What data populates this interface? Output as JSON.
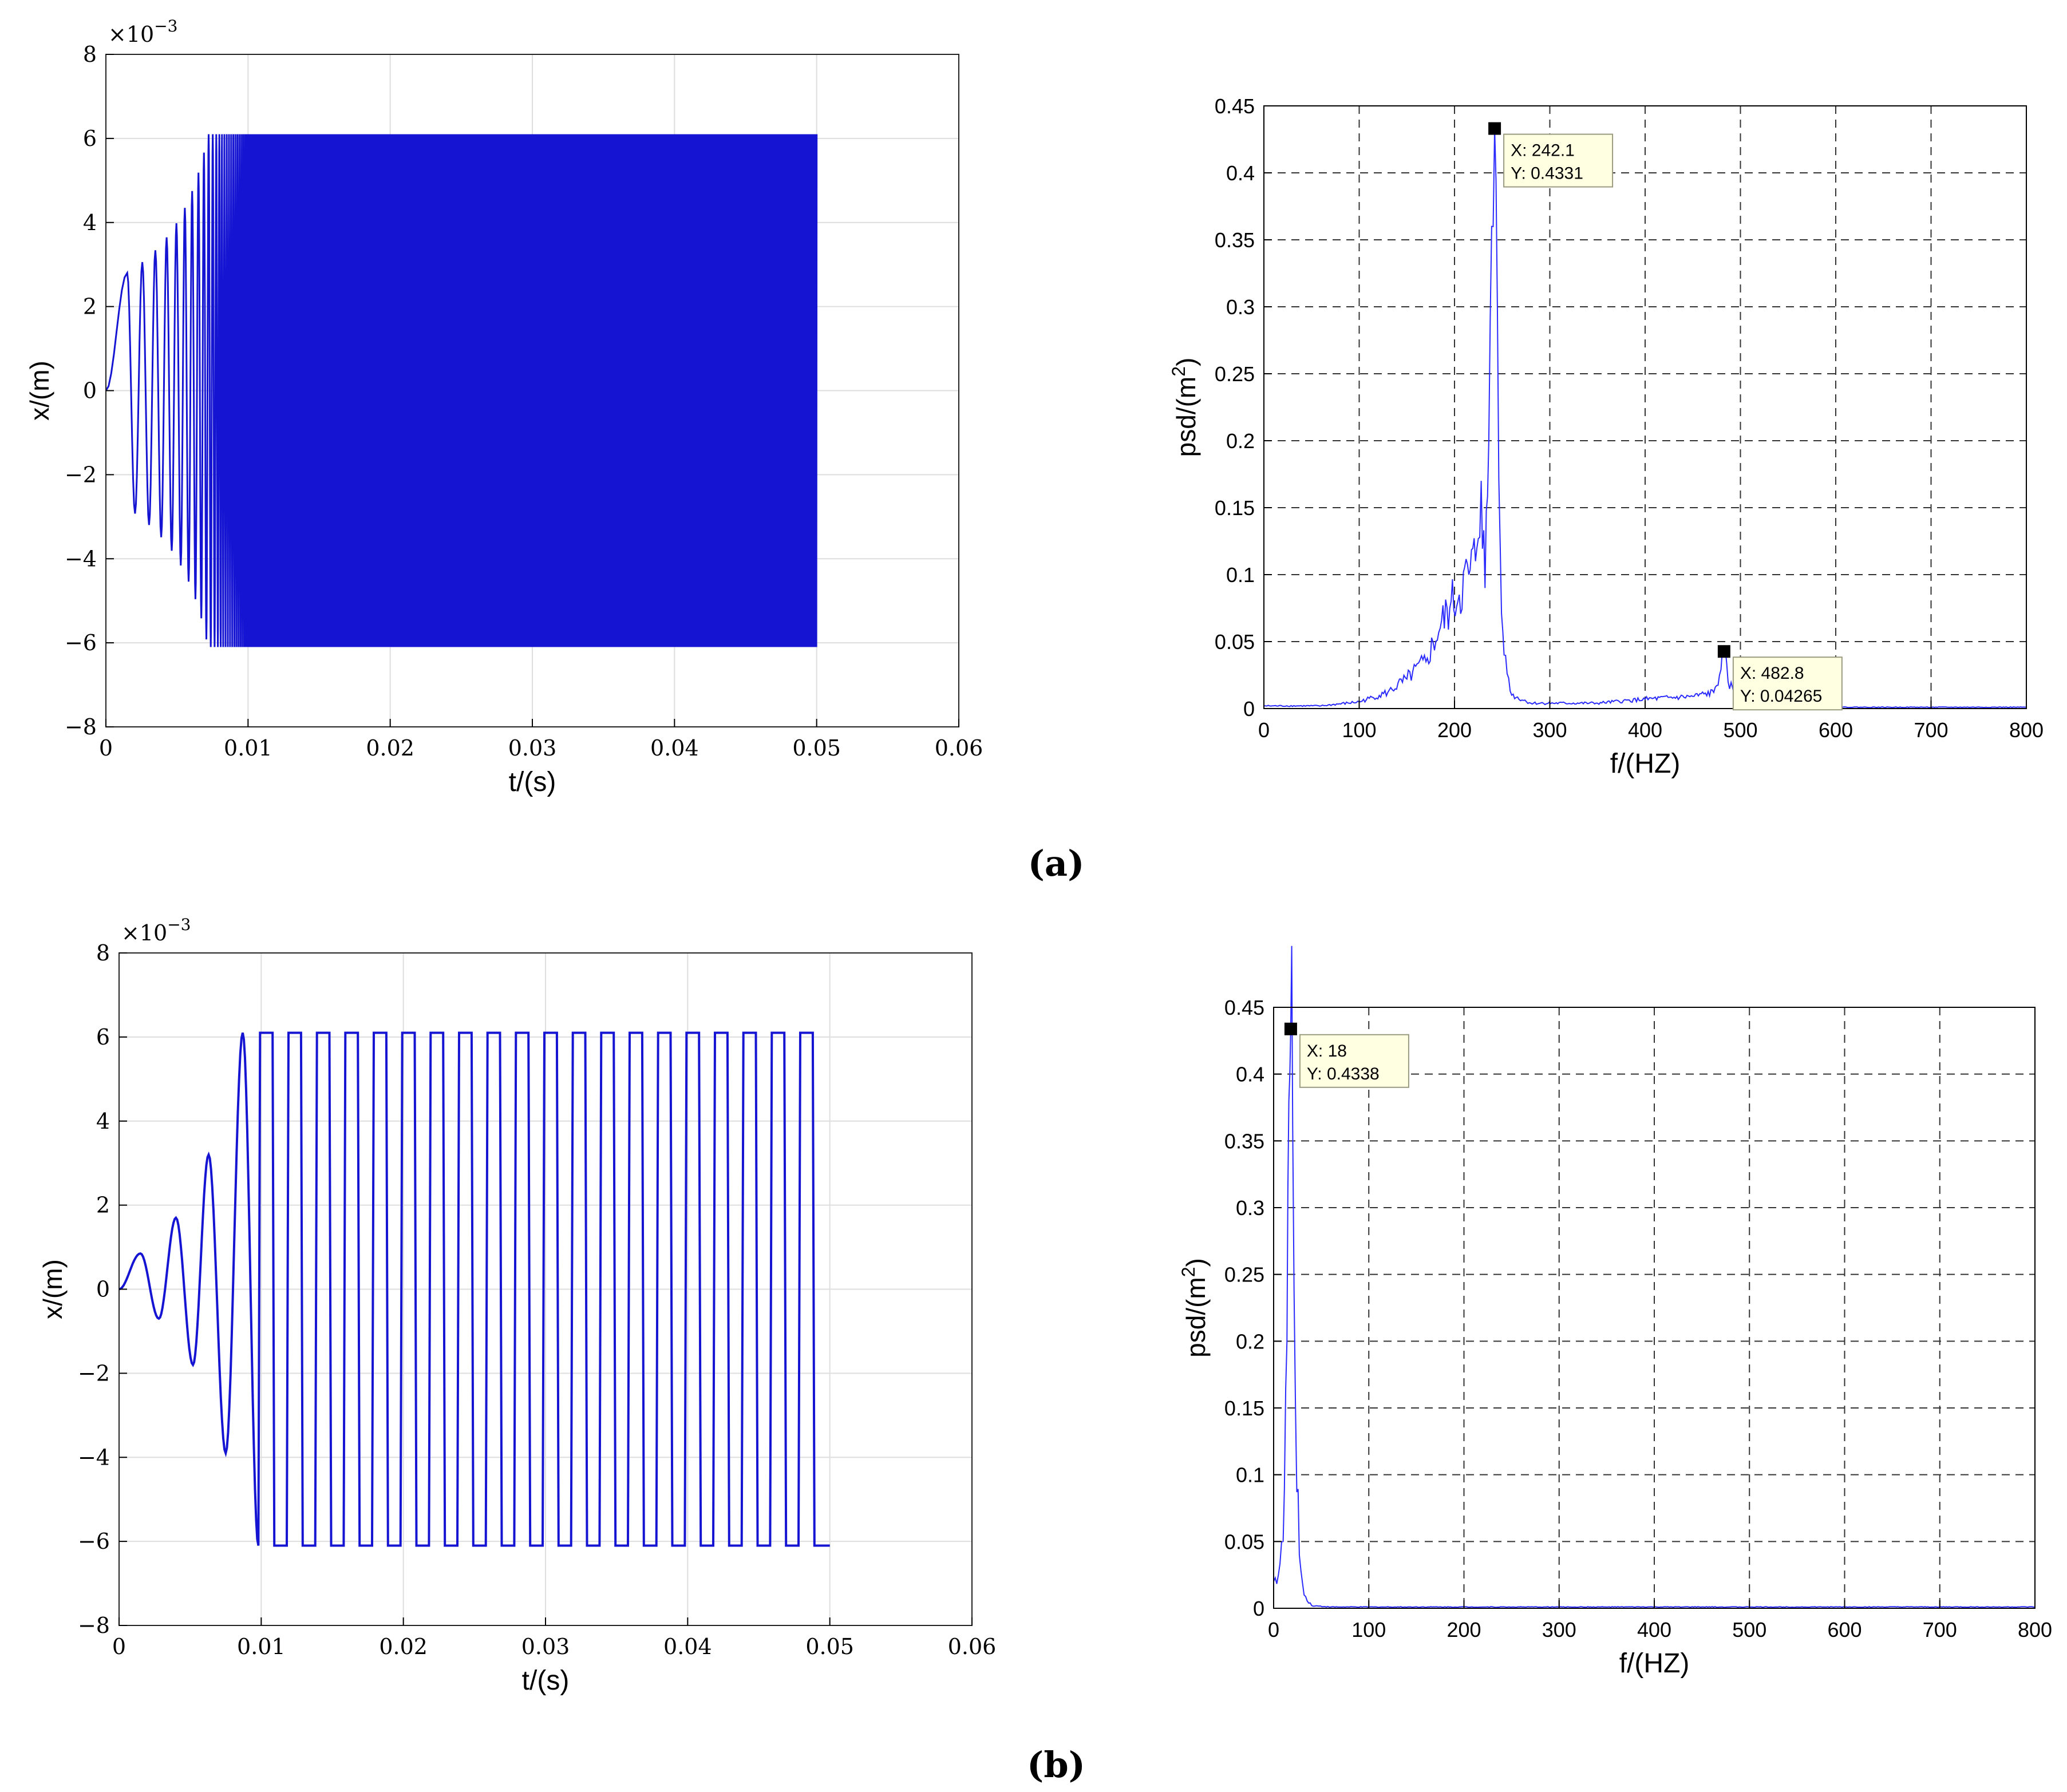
{
  "figure": {
    "labels": [
      "(a)",
      "(b)"
    ],
    "colors": {
      "signal": "#1414d2",
      "psd": "#2a2aff",
      "grid_time": "#dedede",
      "grid_psd": "#333333",
      "annotation_bg": "#ffffe1"
    }
  },
  "chart_data": [
    {
      "id": "a-time",
      "type": "line",
      "panel": "(a)",
      "xlabel": "t/(s)",
      "ylabel": "x/(m)",
      "exponent_label": "×10",
      "exponent_power": "−3",
      "xlim": [
        0,
        0.06
      ],
      "ylim": [
        -8,
        8
      ],
      "xticks": [
        0,
        0.01,
        0.02,
        0.03,
        0.04,
        0.05,
        0.06
      ],
      "xtick_labels": [
        "0",
        "0.01",
        "0.02",
        "0.03",
        "0.04",
        "0.05",
        "0.06"
      ],
      "yticks": [
        -8,
        -6,
        -4,
        -2,
        0,
        2,
        4,
        6,
        8
      ],
      "ytick_labels": [
        "−8",
        "−6",
        "−4",
        "−2",
        "0",
        "2",
        "4",
        "6",
        "8"
      ],
      "grid": true,
      "series": [
        {
          "kind": "chirp",
          "color": "#1414d2",
          "t_end": 0.05,
          "saturation": 6.1,
          "growth_end": 0.0082,
          "peaks": [
            [
              0.0015,
              2.8
            ],
            [
              0.002,
              -2.9
            ],
            [
              0.003,
              3.7
            ],
            [
              0.0034,
              -3.6
            ],
            [
              0.0042,
              4.3
            ],
            [
              0.0058,
              5.2
            ],
            [
              0.0066,
              -5.5
            ],
            [
              0.0078,
              6.1
            ]
          ]
        }
      ]
    },
    {
      "id": "a-psd",
      "type": "line",
      "panel": "(a)",
      "xlabel": "f/(HZ)",
      "ylabel": "psd/(m",
      "ylabel_sup": "2",
      "ylabel_close": ")",
      "xlim": [
        0,
        800
      ],
      "ylim": [
        0,
        0.45
      ],
      "xticks": [
        0,
        100,
        200,
        300,
        400,
        500,
        600,
        700,
        800
      ],
      "xtick_labels": [
        "0",
        "100",
        "200",
        "300",
        "400",
        "500",
        "600",
        "700",
        "800"
      ],
      "yticks": [
        0,
        0.05,
        0.1,
        0.15,
        0.2,
        0.25,
        0.3,
        0.35,
        0.4,
        0.45
      ],
      "ytick_labels": [
        "0",
        "0.05",
        "0.1",
        "0.15",
        "0.2",
        "0.25",
        "0.3",
        "0.35",
        "0.4",
        "0.45"
      ],
      "grid": "dashed",
      "series": [
        {
          "color": "#2a2aff",
          "points": [
            [
              0,
              0.002
            ],
            [
              60,
              0.002
            ],
            [
              100,
              0.005
            ],
            [
              130,
              0.012
            ],
            [
              150,
              0.022
            ],
            [
              170,
              0.035
            ],
            [
              185,
              0.06
            ],
            [
              195,
              0.075
            ],
            [
              205,
              0.085
            ],
            [
              215,
              0.1
            ],
            [
              222,
              0.11
            ],
            [
              228,
              0.17
            ],
            [
              232,
              0.09
            ],
            [
              236,
              0.2
            ],
            [
              239,
              0.36
            ],
            [
              242.1,
              0.4331
            ],
            [
              245,
              0.3
            ],
            [
              248,
              0.12
            ],
            [
              252,
              0.04
            ],
            [
              260,
              0.01
            ],
            [
              280,
              0.004
            ],
            [
              350,
              0.004
            ],
            [
              400,
              0.007
            ],
            [
              450,
              0.009
            ],
            [
              472,
              0.012
            ],
            [
              478,
              0.025
            ],
            [
              482.8,
              0.04265
            ],
            [
              487,
              0.02
            ],
            [
              495,
              0.01
            ],
            [
              510,
              0.003
            ],
            [
              600,
              0.001
            ],
            [
              720,
              0.001
            ],
            [
              800,
              0.001
            ]
          ]
        }
      ],
      "annotations": [
        {
          "x": 242.1,
          "y": 0.4331,
          "line1": "X: 242.1",
          "line2": "Y: 0.4331"
        },
        {
          "x": 482.8,
          "y": 0.04265,
          "line1": "X: 482.8",
          "line2": "Y: 0.04265"
        }
      ]
    },
    {
      "id": "b-time",
      "type": "line",
      "panel": "(b)",
      "xlabel": "t/(s)",
      "ylabel": "x/(m)",
      "exponent_label": "×10",
      "exponent_power": "−3",
      "xlim": [
        0,
        0.06
      ],
      "ylim": [
        -8,
        8
      ],
      "xticks": [
        0,
        0.01,
        0.02,
        0.03,
        0.04,
        0.05,
        0.06
      ],
      "xtick_labels": [
        "0",
        "0.01",
        "0.02",
        "0.03",
        "0.04",
        "0.05",
        "0.06"
      ],
      "yticks": [
        -8,
        -6,
        -4,
        -2,
        0,
        2,
        4,
        6,
        8
      ],
      "ytick_labels": [
        "−8",
        "−6",
        "−4",
        "−2",
        "0",
        "2",
        "4",
        "6",
        "8"
      ],
      "grid": true,
      "series": [
        {
          "kind": "square",
          "color": "#1414d2",
          "t_end": 0.05,
          "saturation": 6.1,
          "peaks": [
            [
              0.0015,
              0.85
            ],
            [
              0.0028,
              -0.7
            ],
            [
              0.004,
              1.7
            ],
            [
              0.0052,
              -1.8
            ],
            [
              0.0063,
              3.2
            ],
            [
              0.0075,
              -3.9
            ],
            [
              0.0087,
              6.1
            ],
            [
              0.0098,
              -6.1
            ]
          ],
          "square_start": 0.0098,
          "square_period": 0.002,
          "square_high_fraction": 0.5
        }
      ]
    },
    {
      "id": "b-psd",
      "type": "line",
      "panel": "(b)",
      "xlabel": "f/(HZ)",
      "ylabel": "psd/(m",
      "ylabel_sup": "2",
      "ylabel_close": ")",
      "xlim": [
        0,
        800
      ],
      "ylim": [
        0,
        0.45
      ],
      "xticks": [
        0,
        100,
        200,
        300,
        400,
        500,
        600,
        700,
        800
      ],
      "xtick_labels": [
        "0",
        "100",
        "200",
        "300",
        "400",
        "500",
        "600",
        "700",
        "800"
      ],
      "yticks": [
        0,
        0.05,
        0.1,
        0.15,
        0.2,
        0.25,
        0.3,
        0.35,
        0.4,
        0.45
      ],
      "ytick_labels": [
        "0",
        "0.05",
        "0.1",
        "0.15",
        "0.2",
        "0.25",
        "0.3",
        "0.35",
        "0.4",
        "0.45"
      ],
      "grid": "dashed",
      "series": [
        {
          "color": "#2a2aff",
          "points": [
            [
              0,
              0.02
            ],
            [
              5,
              0.025
            ],
            [
              10,
              0.05
            ],
            [
              14,
              0.2
            ],
            [
              16,
              0.38
            ],
            [
              18,
              0.4338
            ],
            [
              20,
              0.36
            ],
            [
              23,
              0.15
            ],
            [
              27,
              0.04
            ],
            [
              32,
              0.01
            ],
            [
              40,
              0.002
            ],
            [
              60,
              0.001
            ],
            [
              800,
              0.001
            ]
          ]
        }
      ],
      "annotations": [
        {
          "x": 18,
          "y": 0.4338,
          "line1": "X: 18",
          "line2": "Y: 0.4338"
        }
      ]
    }
  ]
}
